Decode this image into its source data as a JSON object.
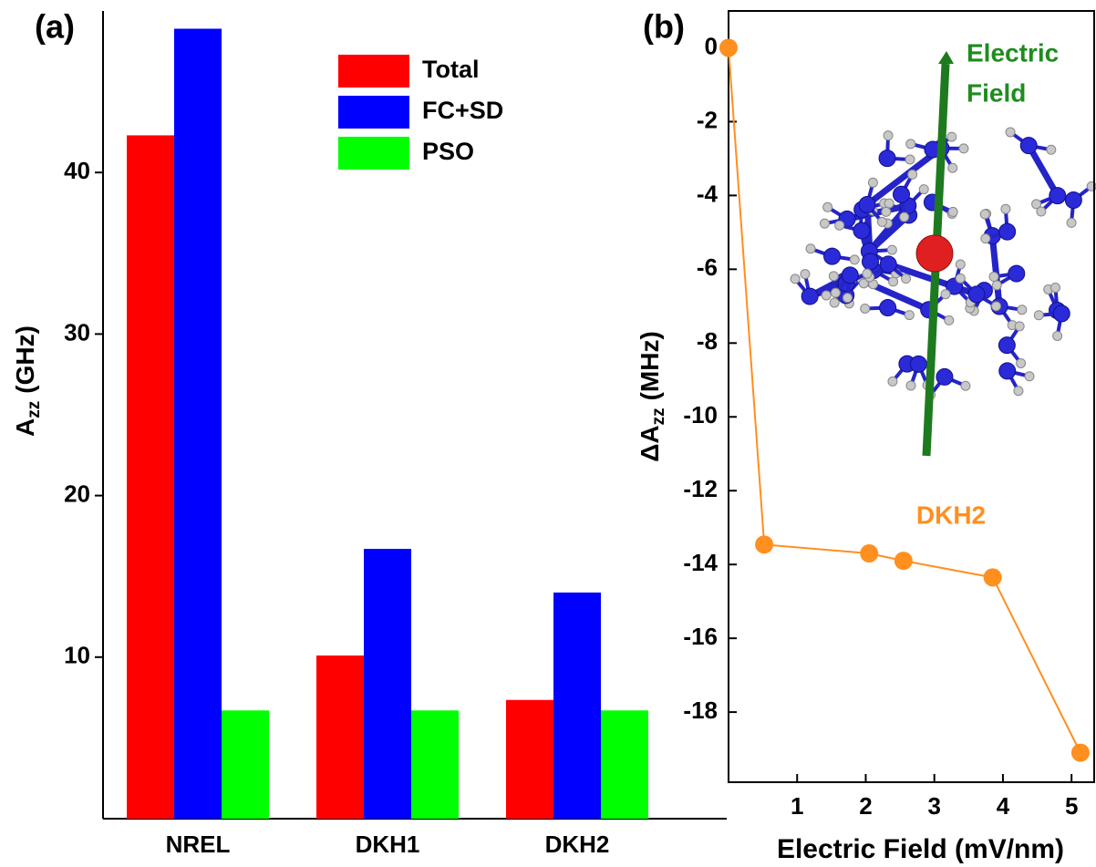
{
  "chart_data": [
    {
      "type": "bar",
      "panel_label": "(a)",
      "y_label": "A",
      "y_label_sub": "zz",
      "y_label_unit": "(GHz)",
      "categories": [
        "NREL",
        "DKH1",
        "DKH2"
      ],
      "series": [
        {
          "name": "Total",
          "color": "#ff0000",
          "values": [
            42.3,
            10.1,
            7.35
          ]
        },
        {
          "name": "FC+SD",
          "color": "#0000ff",
          "values": [
            48.9,
            16.7,
            14.0
          ]
        },
        {
          "name": "PSO",
          "color": "#00ff00",
          "values": [
            6.7,
            6.7,
            6.7
          ]
        }
      ],
      "ylim": [
        0,
        50
      ],
      "yticks": [
        10,
        20,
        30,
        40
      ]
    },
    {
      "type": "line",
      "panel_label": "(b)",
      "y_label": "ΔA",
      "y_label_sub": "zz",
      "y_label_unit": "(MHz)",
      "x_label": "Electric Field (mV/nm)",
      "x": [
        0,
        0.52,
        2.05,
        2.55,
        3.85,
        5.13
      ],
      "series": [
        {
          "name": "DKH2",
          "color": "#ff8f1f",
          "values": [
            0,
            -13.46,
            -13.7,
            -13.9,
            -14.35,
            -19.1
          ]
        }
      ],
      "xlim": [
        0,
        5.33
      ],
      "xticks": [
        1,
        2,
        3,
        4,
        5
      ],
      "ylim": [
        -19.9,
        1
      ],
      "yticks": [
        0,
        -2,
        -4,
        -6,
        -8,
        -10,
        -12,
        -14,
        -16,
        -18
      ],
      "annotation": [
        "Electric",
        "Field"
      ],
      "annotation_color": "#1e8c1e"
    }
  ]
}
